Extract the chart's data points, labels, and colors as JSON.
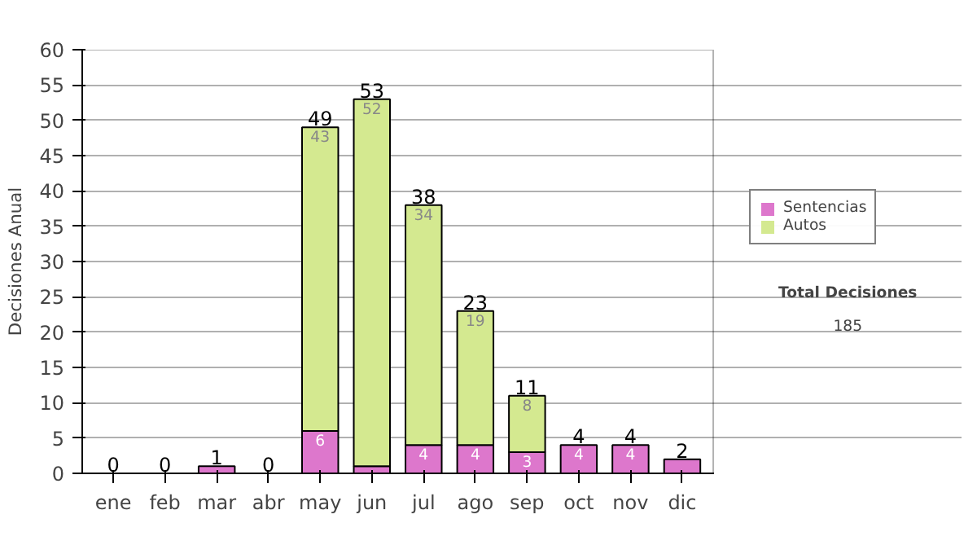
{
  "chart_data": {
    "type": "bar",
    "stacked": true,
    "ylabel": "Decisiones Anual",
    "categories": [
      "ene",
      "feb",
      "mar",
      "abr",
      "may",
      "jun",
      "jul",
      "ago",
      "sep",
      "oct",
      "nov",
      "dic"
    ],
    "series": [
      {
        "name": "Sentencias",
        "color": "#dd77cc",
        "values": [
          0,
          0,
          1,
          0,
          6,
          1,
          4,
          4,
          3,
          4,
          4,
          2
        ],
        "value_labels": [
          null,
          null,
          null,
          null,
          "6",
          null,
          "4",
          "4",
          "3",
          "4",
          "4",
          null
        ]
      },
      {
        "name": "Autos",
        "color": "#d4e990",
        "values": [
          0,
          0,
          0,
          0,
          43,
          52,
          34,
          19,
          8,
          0,
          0,
          0
        ],
        "value_labels": [
          null,
          null,
          null,
          null,
          "43",
          "52",
          "34",
          "19",
          "8",
          null,
          null,
          null
        ]
      }
    ],
    "totals": [
      "0",
      "0",
      "1",
      "0",
      "49",
      "53",
      "38",
      "23",
      "11",
      "4",
      "4",
      "2"
    ],
    "ylim": [
      0,
      60
    ],
    "yticks": [
      0,
      5,
      10,
      15,
      20,
      25,
      30,
      35,
      40,
      45,
      50,
      55,
      60
    ],
    "grid": "y",
    "legend": "right",
    "annotations": [
      "Total Decisiones",
      "185"
    ]
  }
}
